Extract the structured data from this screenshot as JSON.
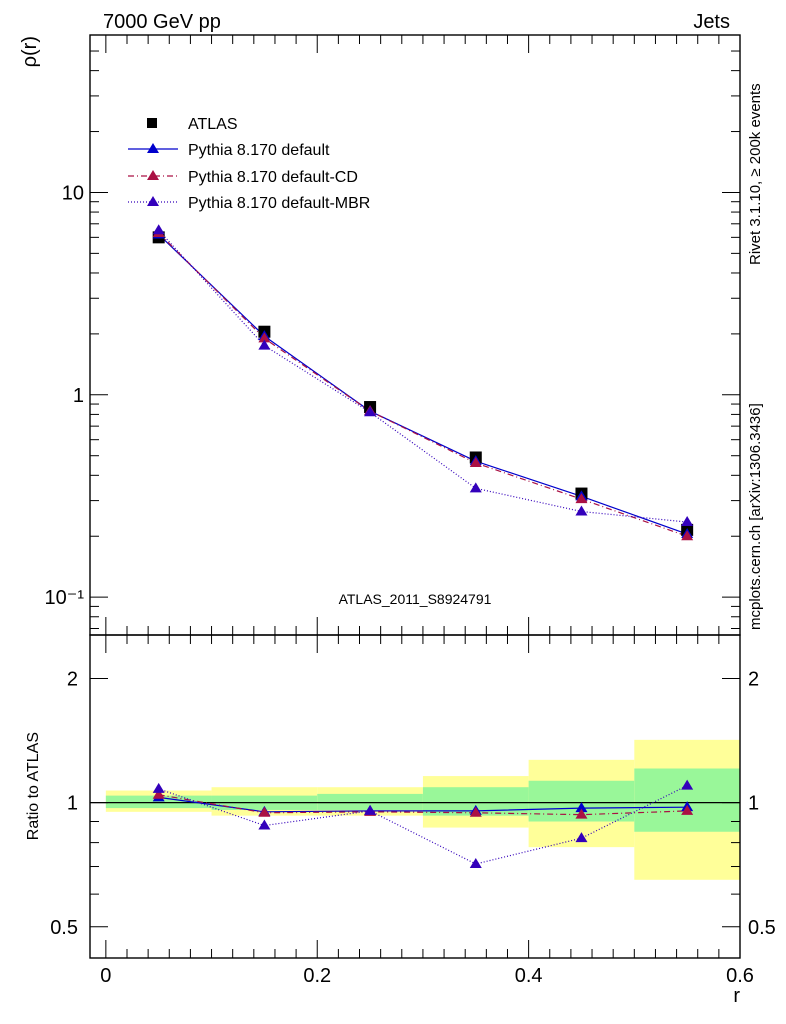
{
  "header": {
    "left": "7000 GeV pp",
    "right": "Jets"
  },
  "side_text": {
    "rivet": "Rivet 3.1.10, ≥ 200k events",
    "mcplots": "mcplots.cern.ch [arXiv:1306.3436]"
  },
  "colors": {
    "data": "#000000",
    "default": "#0000cc",
    "cd": "#aa1144",
    "mbr": "#3300bb",
    "band_inner": "#99f799",
    "band_outer": "#ffff99"
  },
  "chart_data": [
    {
      "type": "scatter",
      "panel": "main",
      "ylabel": "ρ(r)",
      "yscale": "log",
      "ylim": [
        0.065,
        60
      ],
      "xlim": [
        -0.015,
        0.6
      ],
      "annotation": "ATLAS_2011_S8924791",
      "y_tick_labels": [
        "10",
        "1",
        "10⁻¹"
      ],
      "x": [
        0.05,
        0.15,
        0.25,
        0.35,
        0.45,
        0.55
      ],
      "series": [
        {
          "name": "ATLAS",
          "style": "square",
          "values": [
            6.0,
            2.05,
            0.87,
            0.49,
            0.325,
            0.215
          ]
        },
        {
          "name": "Pythia 8.170 default",
          "style": "solid",
          "values": [
            6.2,
            1.95,
            0.83,
            0.47,
            0.315,
            0.205
          ]
        },
        {
          "name": "Pythia 8.170 default-CD",
          "style": "dashdot",
          "values": [
            6.3,
            1.9,
            0.83,
            0.46,
            0.305,
            0.2
          ]
        },
        {
          "name": "Pythia 8.170 default-MBR",
          "style": "dotted",
          "values": [
            6.5,
            1.75,
            0.82,
            0.345,
            0.265,
            0.235
          ]
        }
      ]
    },
    {
      "type": "scatter",
      "panel": "ratio",
      "xlabel": "r",
      "ylabel": "Ratio to ATLAS",
      "yscale": "log",
      "ylim": [
        0.42,
        2.55
      ],
      "xlim": [
        -0.015,
        0.6
      ],
      "x_tick_labels": [
        "0",
        "0.2",
        "0.4",
        "0.6"
      ],
      "y_tick_labels": [
        "2",
        "1",
        "0.5"
      ],
      "x": [
        0.05,
        0.15,
        0.25,
        0.35,
        0.45,
        0.55
      ],
      "bands": [
        {
          "x0": 0.0,
          "x1": 0.1,
          "inner": [
            0.97,
            1.04
          ],
          "outer": [
            0.95,
            1.07
          ]
        },
        {
          "x0": 0.1,
          "x1": 0.2,
          "inner": [
            0.96,
            1.04
          ],
          "outer": [
            0.93,
            1.09
          ]
        },
        {
          "x0": 0.2,
          "x1": 0.3,
          "inner": [
            0.96,
            1.05
          ],
          "outer": [
            0.93,
            1.09
          ]
        },
        {
          "x0": 0.3,
          "x1": 0.4,
          "inner": [
            0.93,
            1.09
          ],
          "outer": [
            0.87,
            1.16
          ]
        },
        {
          "x0": 0.4,
          "x1": 0.5,
          "inner": [
            0.9,
            1.13
          ],
          "outer": [
            0.78,
            1.27
          ]
        },
        {
          "x0": 0.5,
          "x1": 0.6,
          "inner": [
            0.85,
            1.21
          ],
          "outer": [
            0.65,
            1.42
          ]
        }
      ],
      "series": [
        {
          "name": "Pythia 8.170 default",
          "style": "solid",
          "values": [
            1.03,
            0.95,
            0.955,
            0.955,
            0.97,
            0.975
          ]
        },
        {
          "name": "Pythia 8.170 default-CD",
          "style": "dashdot",
          "values": [
            1.045,
            0.945,
            0.95,
            0.945,
            0.935,
            0.955
          ]
        },
        {
          "name": "Pythia 8.170 default-MBR",
          "style": "dotted",
          "values": [
            1.08,
            0.88,
            0.955,
            0.71,
            0.82,
            1.1
          ]
        }
      ]
    }
  ]
}
